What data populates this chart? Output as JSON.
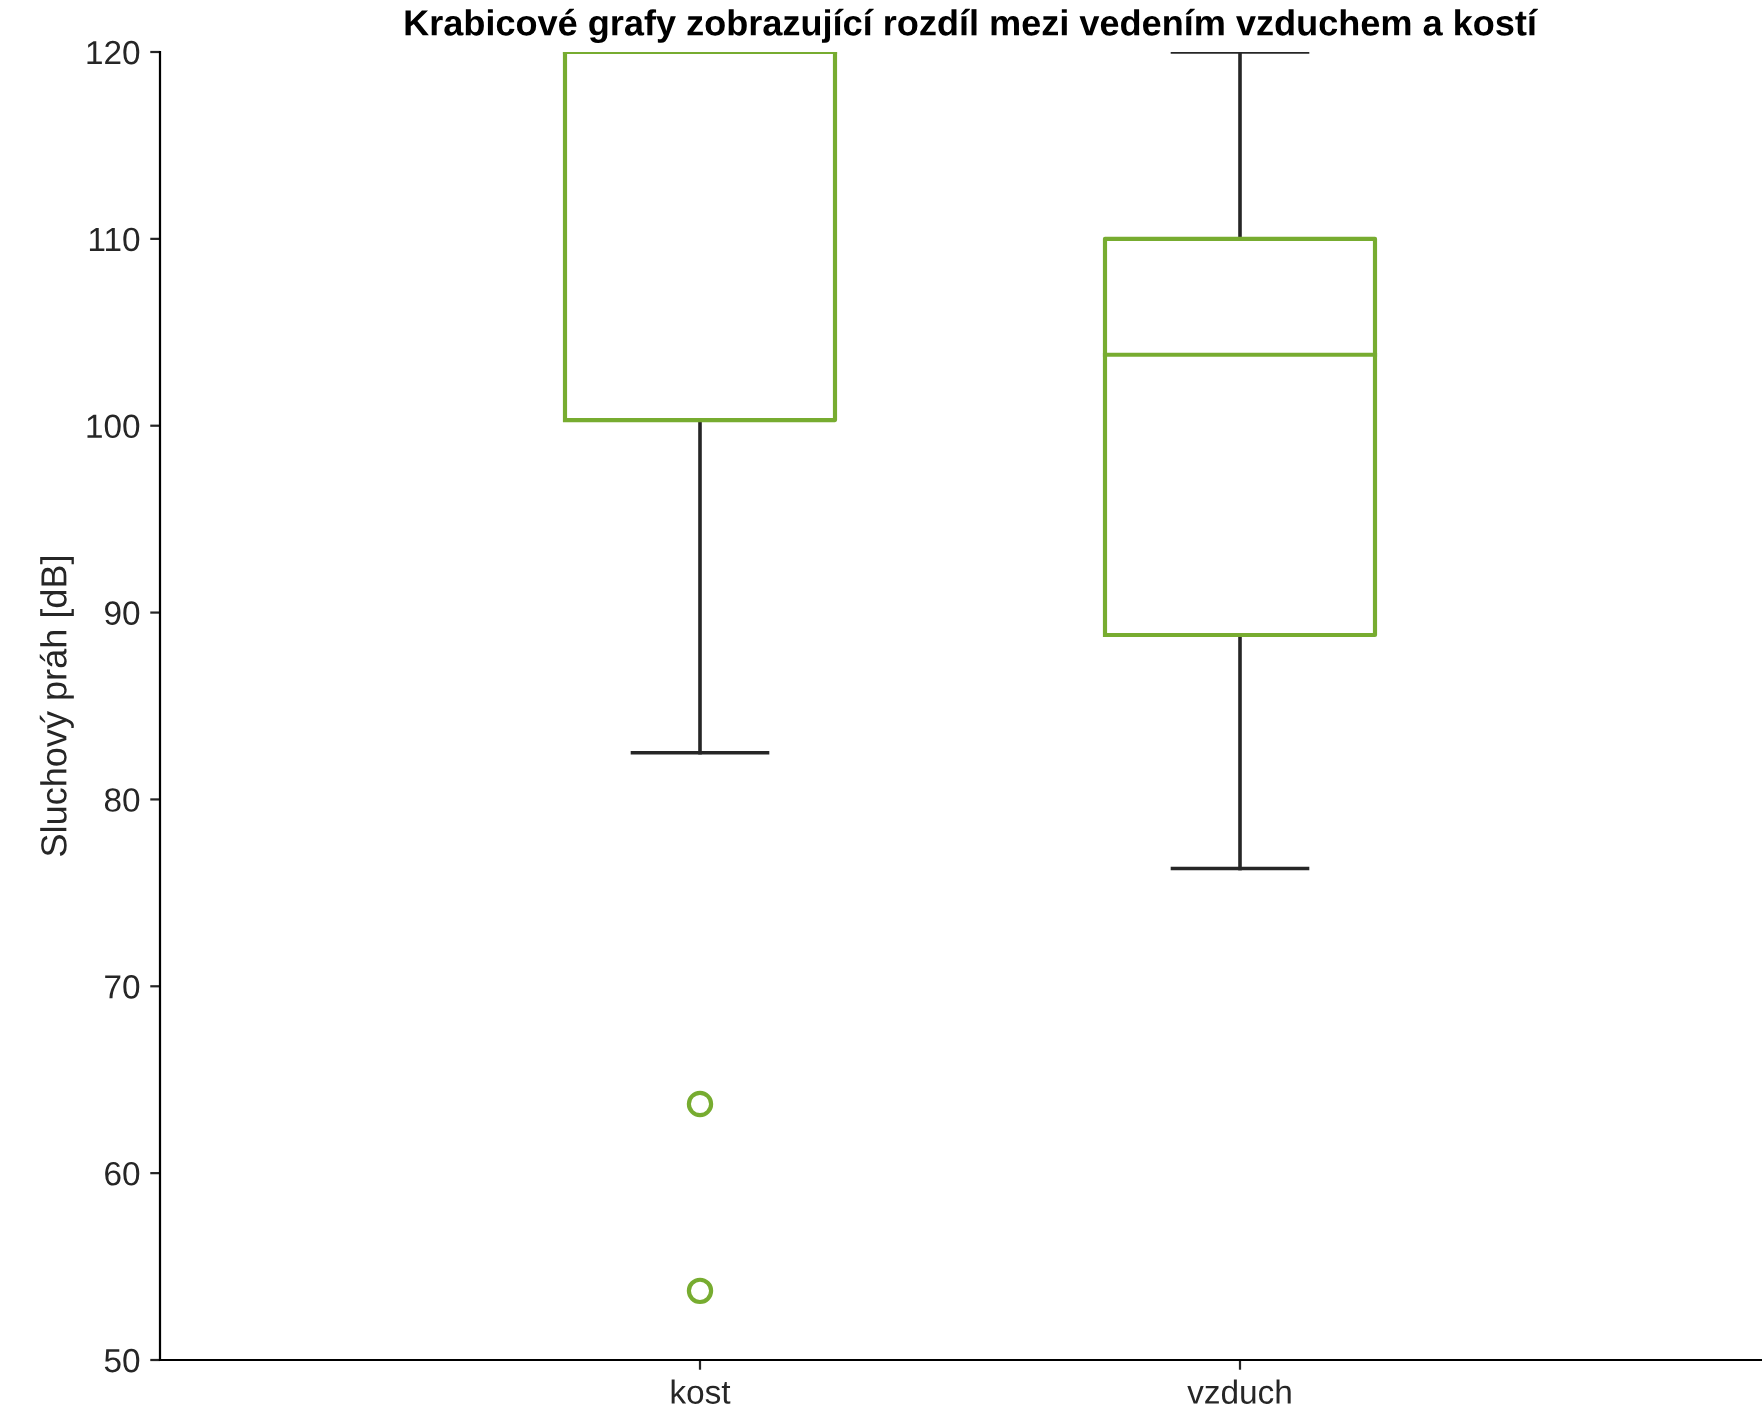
{
  "chart_data": {
    "type": "box",
    "title": "Krabicové grafy zobrazující rozdíl mezi vedením vzduchem a kostí",
    "ylabel": "Sluchový práh [dB]",
    "categories": [
      "kost",
      "vzduch"
    ],
    "boxes": [
      {
        "low": 82.5,
        "q1": 100.3,
        "median": 120,
        "q3": 120,
        "high": 120,
        "outliers": [
          63.7,
          53.7
        ]
      },
      {
        "low": 76.3,
        "q1": 88.8,
        "median": 103.8,
        "q3": 110,
        "high": 120
      }
    ],
    "color": "#77ac30",
    "ylim": [
      50,
      120
    ],
    "yticks": [
      50,
      60,
      70,
      80,
      90,
      100,
      110,
      120
    ],
    "grid": false,
    "legend": false,
    "marker": "circle"
  }
}
